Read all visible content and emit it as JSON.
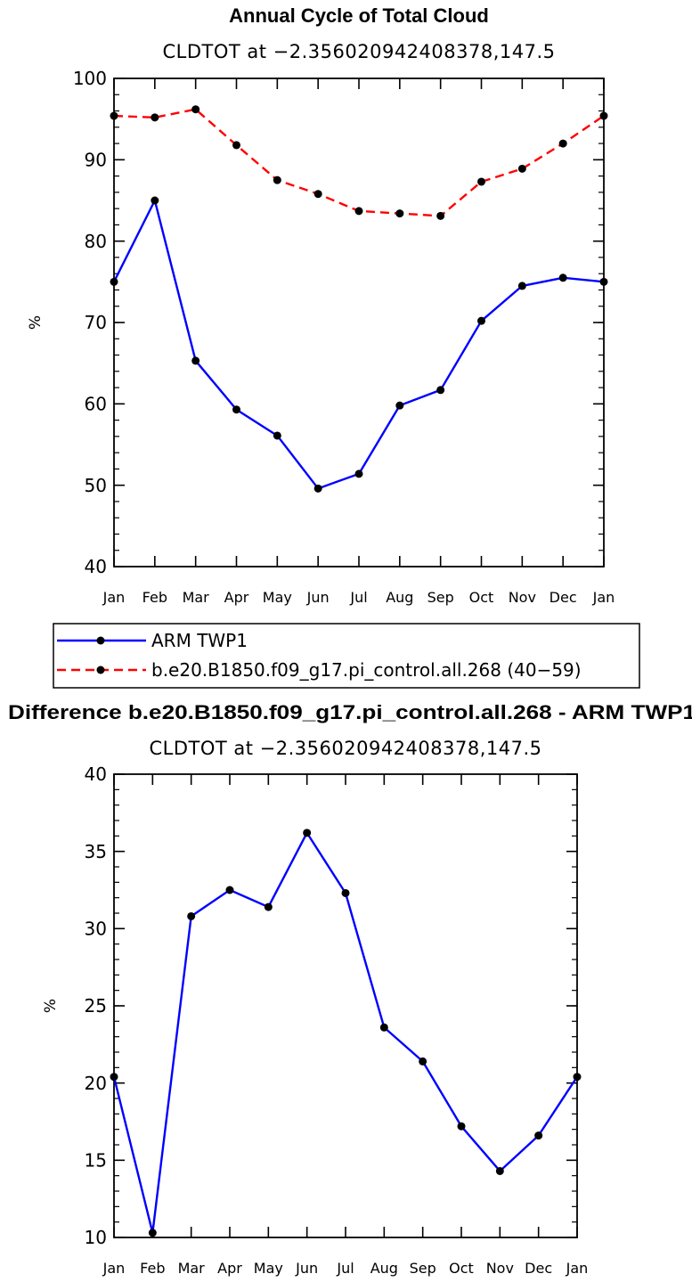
{
  "charts": {
    "top": {
      "title": "Annual Cycle of Total Cloud",
      "subtitle": "CLDTOT at −2.356020942408378,147.5"
    },
    "bottom": {
      "title": "Difference b.e20.B1850.f09_g17.pi_control.all.268 - ARM TWP1",
      "subtitle": "CLDTOT at −2.356020942408378,147.5"
    }
  },
  "chart_data": [
    {
      "type": "line",
      "title": "Annual Cycle of Total Cloud",
      "subtitle": "CLDTOT at −2.356020942408378,147.5",
      "xlabel": "",
      "ylabel": "%",
      "categories": [
        "Jan",
        "Feb",
        "Mar",
        "Apr",
        "May",
        "Jun",
        "Jul",
        "Aug",
        "Sep",
        "Oct",
        "Nov",
        "Dec",
        "Jan"
      ],
      "ylim": [
        40,
        100
      ],
      "yticks": [
        40,
        50,
        60,
        70,
        80,
        90,
        100
      ],
      "grid": false,
      "legend": "below",
      "series": [
        {
          "name": "ARM TWP1",
          "color": "#0000ff",
          "dash": "solid",
          "values": [
            75.0,
            85.0,
            65.3,
            59.3,
            56.1,
            49.6,
            51.4,
            59.8,
            61.7,
            70.2,
            74.5,
            75.5,
            75.0
          ]
        },
        {
          "name": "b.e20.B1850.f09_g17.pi_control.all.268 (40−59)",
          "color": "#ff0000",
          "dash": "dashed",
          "values": [
            95.4,
            95.2,
            96.2,
            91.8,
            87.5,
            85.8,
            83.7,
            83.4,
            83.1,
            87.3,
            88.9,
            92.0,
            95.4
          ]
        }
      ]
    },
    {
      "type": "line",
      "title": "Difference b.e20.B1850.f09_g17.pi_control.all.268 - ARM TWP1",
      "subtitle": "CLDTOT at −2.356020942408378,147.5",
      "xlabel": "",
      "ylabel": "%",
      "categories": [
        "Jan",
        "Feb",
        "Mar",
        "Apr",
        "May",
        "Jun",
        "Jul",
        "Aug",
        "Sep",
        "Oct",
        "Nov",
        "Dec",
        "Jan"
      ],
      "ylim": [
        10,
        40
      ],
      "yticks": [
        10,
        15,
        20,
        25,
        30,
        35,
        40
      ],
      "grid": false,
      "series": [
        {
          "color": "#0000ff",
          "dash": "solid",
          "values": [
            20.4,
            10.3,
            30.8,
            32.5,
            31.4,
            36.2,
            32.3,
            23.6,
            21.4,
            17.2,
            14.3,
            16.6,
            20.4
          ]
        }
      ]
    }
  ]
}
